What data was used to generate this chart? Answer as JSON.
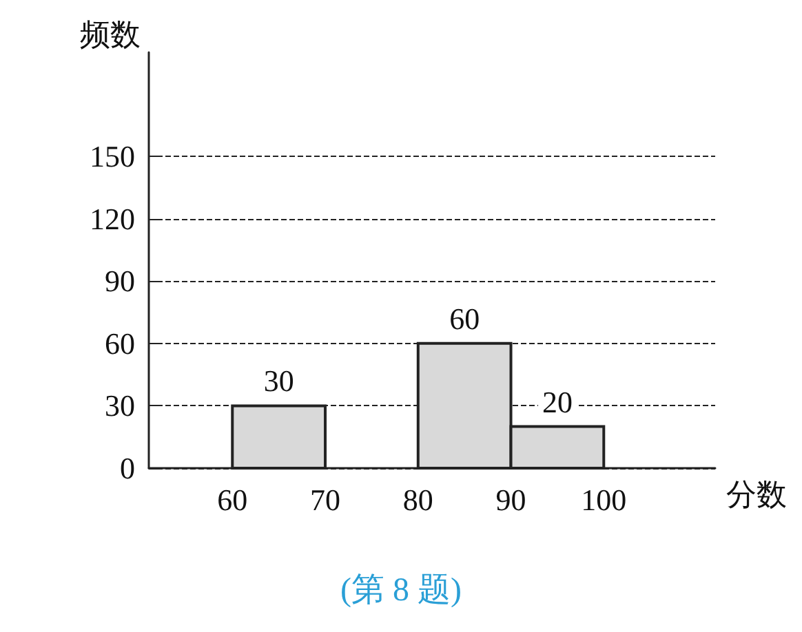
{
  "chart_data": {
    "type": "histogram",
    "xlabel": "分数",
    "ylabel": "频数",
    "bins": [
      60,
      70,
      80,
      90,
      100
    ],
    "values": [
      30,
      null,
      60,
      20
    ],
    "color": "#d9d9d9",
    "xlim": [
      51,
      112
    ],
    "xticks": [
      60,
      70,
      80,
      90,
      100
    ],
    "ylim": [
      0,
      200
    ],
    "yticks": [
      0,
      30,
      60,
      90,
      120,
      150
    ],
    "grid": "y",
    "data_labels": true,
    "annotations": [
      "(第 8 题)"
    ]
  }
}
